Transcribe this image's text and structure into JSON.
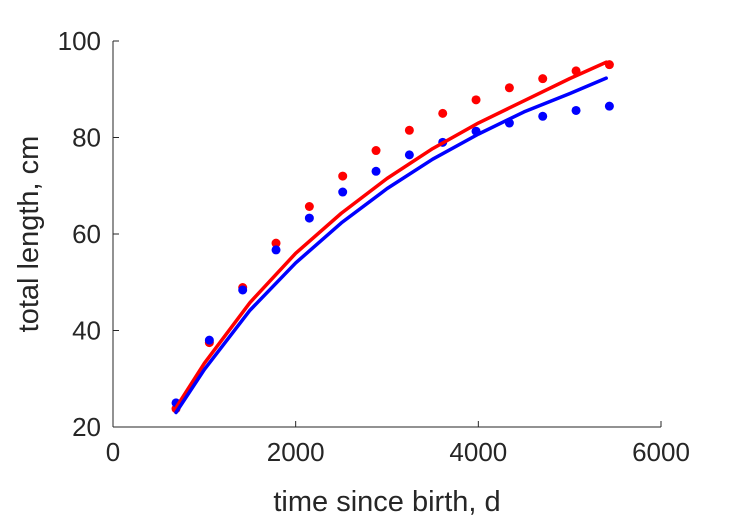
{
  "chart_data": {
    "type": "scatter",
    "title": "",
    "xlabel": "time since birth, d",
    "ylabel": "total length, cm",
    "xlim": [
      0,
      6000
    ],
    "ylim": [
      20,
      100
    ],
    "xticks": [
      0,
      2000,
      4000,
      6000
    ],
    "yticks": [
      20,
      40,
      60,
      80,
      100
    ],
    "grid": false,
    "legend": "none",
    "series": [
      {
        "color": "#ff0000",
        "kind": "points",
        "x": [
          690,
          1055,
          1420,
          1785,
          2150,
          2515,
          2880,
          3245,
          3610,
          3975,
          4340,
          4705,
          5070,
          5435
        ],
        "y": [
          23.8,
          37.5,
          48.9,
          58.1,
          65.7,
          72.0,
          77.3,
          81.5,
          85.0,
          87.8,
          90.3,
          92.2,
          93.8,
          95.1
        ]
      },
      {
        "color": "#0000ff",
        "kind": "points",
        "x": [
          690,
          1055,
          1420,
          1785,
          2150,
          2515,
          2880,
          3245,
          3610,
          3975,
          4340,
          4705,
          5070,
          5435
        ],
        "y": [
          25.0,
          38.0,
          48.4,
          56.7,
          63.3,
          68.7,
          73.0,
          76.4,
          79.0,
          81.3,
          83.0,
          84.4,
          85.6,
          86.5
        ]
      },
      {
        "color": "#ff0000",
        "kind": "line",
        "x": [
          690,
          1000,
          1500,
          2000,
          2500,
          3000,
          3500,
          4000,
          4500,
          5000,
          5400
        ],
        "y": [
          24.0,
          33.2,
          45.8,
          56.0,
          64.3,
          71.5,
          77.7,
          83.0,
          87.6,
          92.2,
          95.6
        ]
      },
      {
        "color": "#0000ff",
        "kind": "line",
        "x": [
          690,
          1000,
          1500,
          2000,
          2500,
          3000,
          3500,
          4000,
          4500,
          5000,
          5400
        ],
        "y": [
          23.0,
          31.9,
          44.2,
          54.0,
          62.3,
          69.4,
          75.5,
          80.7,
          85.3,
          89.1,
          92.3
        ]
      }
    ]
  }
}
